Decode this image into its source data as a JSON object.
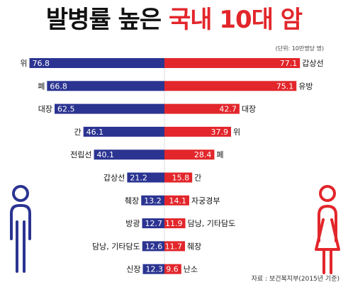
{
  "title": {
    "part1": "발병률 높은",
    "part2": "국내 10대 암"
  },
  "unit_note": "(단위: 10만명당 명)",
  "source": "자료 : 보건복지부(2015년 기준)",
  "colors": {
    "male": "#2b3491",
    "female": "#e2262b",
    "title_accent": "#e2262b"
  },
  "icons": {
    "male": "male-figure-icon",
    "female": "female-figure-icon"
  },
  "chart_data": [
    {
      "type": "bar",
      "series": "male",
      "orientation": "horizontal",
      "direction": "left",
      "categories": [
        "위",
        "폐",
        "대장",
        "간",
        "전립선",
        "갑상선",
        "췌장",
        "방광",
        "담낭, 기타담도",
        "신장"
      ],
      "values": [
        76.8,
        66.8,
        62.5,
        46.1,
        40.1,
        21.2,
        13.2,
        12.7,
        12.6,
        12.3
      ],
      "xlim": [
        0,
        80
      ]
    },
    {
      "type": "bar",
      "series": "female",
      "orientation": "horizontal",
      "direction": "right",
      "categories": [
        "갑상선",
        "유방",
        "대장",
        "위",
        "폐",
        "간",
        "자궁경부",
        "담낭, 기타담도",
        "췌장",
        "난소"
      ],
      "values": [
        77.1,
        75.1,
        42.7,
        37.9,
        28.4,
        15.8,
        14.1,
        11.9,
        11.7,
        9.6
      ],
      "xlim": [
        0,
        80
      ]
    }
  ]
}
